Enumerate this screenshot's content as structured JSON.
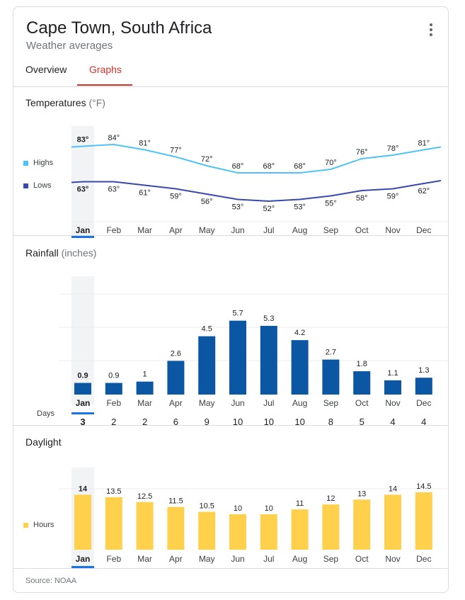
{
  "header": {
    "title": "Cape Town, South Africa",
    "subtitle": "Weather averages"
  },
  "tabs": {
    "overview": "Overview",
    "graphs": "Graphs"
  },
  "selected_month_index": 0,
  "months": [
    "Jan",
    "Feb",
    "Mar",
    "Apr",
    "May",
    "Jun",
    "Jul",
    "Aug",
    "Sep",
    "Oct",
    "Nov",
    "Dec"
  ],
  "temperatures": {
    "title": "Temperatures",
    "unit": "(°F)",
    "legend_highs": "Highs",
    "legend_lows": "Lows",
    "colors": {
      "highs": "#4fc3f7",
      "lows": "#3949ab"
    }
  },
  "rainfall": {
    "title": "Rainfall",
    "unit": "(inches)",
    "days_label": "Days",
    "days": [
      3,
      2,
      2,
      6,
      9,
      10,
      10,
      10,
      8,
      5,
      4,
      4
    ],
    "color": "#0b57a4"
  },
  "daylight": {
    "title": "Daylight",
    "legend_hours": "Hours",
    "color": "#ffd04c"
  },
  "source": "Source: NOAA",
  "chart_data": [
    {
      "type": "line",
      "title": "Temperatures (°F)",
      "categories": [
        "Jan",
        "Feb",
        "Mar",
        "Apr",
        "May",
        "Jun",
        "Jul",
        "Aug",
        "Sep",
        "Oct",
        "Nov",
        "Dec"
      ],
      "series": [
        {
          "name": "Highs",
          "values": [
            83,
            84,
            81,
            77,
            72,
            68,
            68,
            68,
            70,
            76,
            78,
            81
          ],
          "labels": [
            "83°",
            "84°",
            "81°",
            "77°",
            "72°",
            "68°",
            "68°",
            "68°",
            "70°",
            "76°",
            "78°",
            "81°"
          ]
        },
        {
          "name": "Lows",
          "values": [
            63,
            63,
            61,
            59,
            56,
            53,
            52,
            53,
            55,
            58,
            59,
            62
          ],
          "labels": [
            "63°",
            "63°",
            "61°",
            "59°",
            "56°",
            "53°",
            "52°",
            "53°",
            "55°",
            "58°",
            "59°",
            "62°"
          ]
        }
      ],
      "ylim": [
        48,
        88
      ]
    },
    {
      "type": "bar",
      "title": "Rainfall (inches)",
      "categories": [
        "Jan",
        "Feb",
        "Mar",
        "Apr",
        "May",
        "Jun",
        "Jul",
        "Aug",
        "Sep",
        "Oct",
        "Nov",
        "Dec"
      ],
      "values": [
        0.9,
        0.9,
        1,
        2.6,
        4.5,
        5.7,
        5.3,
        4.2,
        2.7,
        1.8,
        1.1,
        1.3
      ],
      "labels": [
        "0.9",
        "0.9",
        "1",
        "2.6",
        "4.5",
        "5.7",
        "5.3",
        "4.2",
        "2.7",
        "1.8",
        "1.1",
        "1.3"
      ],
      "ylim": [
        0,
        9
      ]
    },
    {
      "type": "bar",
      "title": "Daylight",
      "categories": [
        "Jan",
        "Feb",
        "Mar",
        "Apr",
        "May",
        "Jun",
        "Jul",
        "Aug",
        "Sep",
        "Oct",
        "Nov",
        "Dec"
      ],
      "series": [
        {
          "name": "Hours",
          "values": [
            14,
            13.5,
            12.5,
            11.5,
            10.5,
            10,
            10,
            11,
            12,
            13,
            14,
            14.5
          ]
        }
      ],
      "labels": [
        "14",
        "13.5",
        "12.5",
        "11.5",
        "10.5",
        "10",
        "10",
        "11",
        "12",
        "13",
        "14",
        "14.5"
      ],
      "ylim": [
        0,
        14.5
      ]
    }
  ]
}
